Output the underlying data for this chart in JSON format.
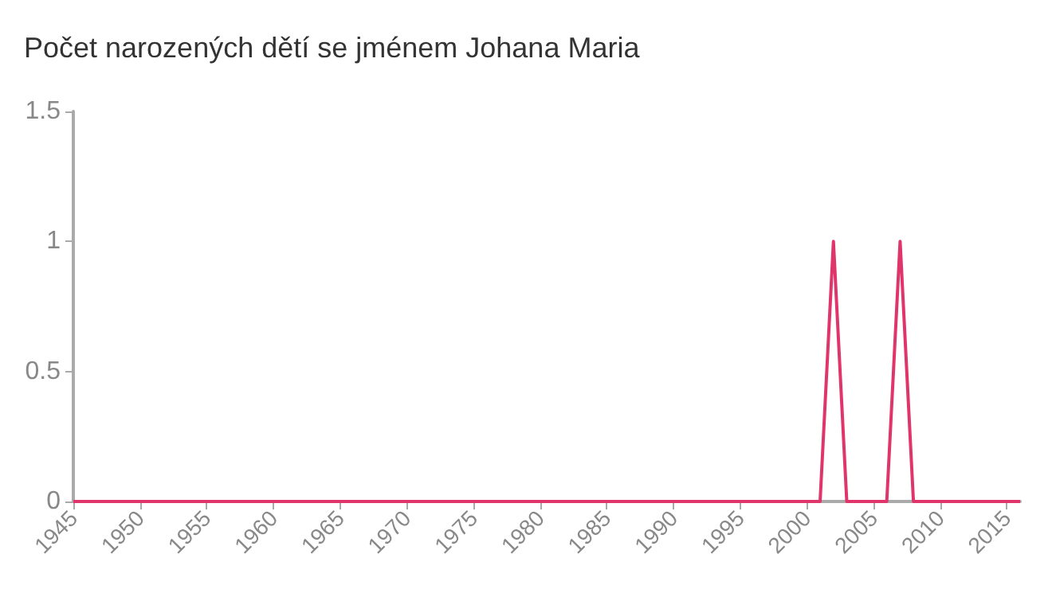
{
  "chart_data": {
    "type": "line",
    "title": "Počet narozených dětí se jménem Johana Maria",
    "x": [
      1945,
      1946,
      1947,
      1948,
      1949,
      1950,
      1951,
      1952,
      1953,
      1954,
      1955,
      1956,
      1957,
      1958,
      1959,
      1960,
      1961,
      1962,
      1963,
      1964,
      1965,
      1966,
      1967,
      1968,
      1969,
      1970,
      1971,
      1972,
      1973,
      1974,
      1975,
      1976,
      1977,
      1978,
      1979,
      1980,
      1981,
      1982,
      1983,
      1984,
      1985,
      1986,
      1987,
      1988,
      1989,
      1990,
      1991,
      1992,
      1993,
      1994,
      1995,
      1996,
      1997,
      1998,
      1999,
      2000,
      2001,
      2002,
      2003,
      2004,
      2005,
      2006,
      2007,
      2008,
      2009,
      2010,
      2011,
      2012,
      2013,
      2014,
      2015,
      2016
    ],
    "series": [
      {
        "color": "#e0356b",
        "values": [
          0,
          0,
          0,
          0,
          0,
          0,
          0,
          0,
          0,
          0,
          0,
          0,
          0,
          0,
          0,
          0,
          0,
          0,
          0,
          0,
          0,
          0,
          0,
          0,
          0,
          0,
          0,
          0,
          0,
          0,
          0,
          0,
          0,
          0,
          0,
          0,
          0,
          0,
          0,
          0,
          0,
          0,
          0,
          0,
          0,
          0,
          0,
          0,
          0,
          0,
          0,
          0,
          0,
          0,
          0,
          0,
          0,
          1,
          0,
          0,
          0,
          0,
          1,
          0,
          0,
          0,
          0,
          0,
          0,
          0,
          0,
          0
        ]
      }
    ],
    "xlim": [
      1945,
      2016
    ],
    "xticks": [
      1945,
      1950,
      1955,
      1960,
      1965,
      1970,
      1975,
      1980,
      1985,
      1990,
      1995,
      2000,
      2005,
      2010,
      2015
    ],
    "ylim": [
      0,
      1.5
    ],
    "yticks": [
      0,
      0.5,
      1,
      1.5
    ],
    "grid": false,
    "marker": "none",
    "line_style": "solid"
  }
}
